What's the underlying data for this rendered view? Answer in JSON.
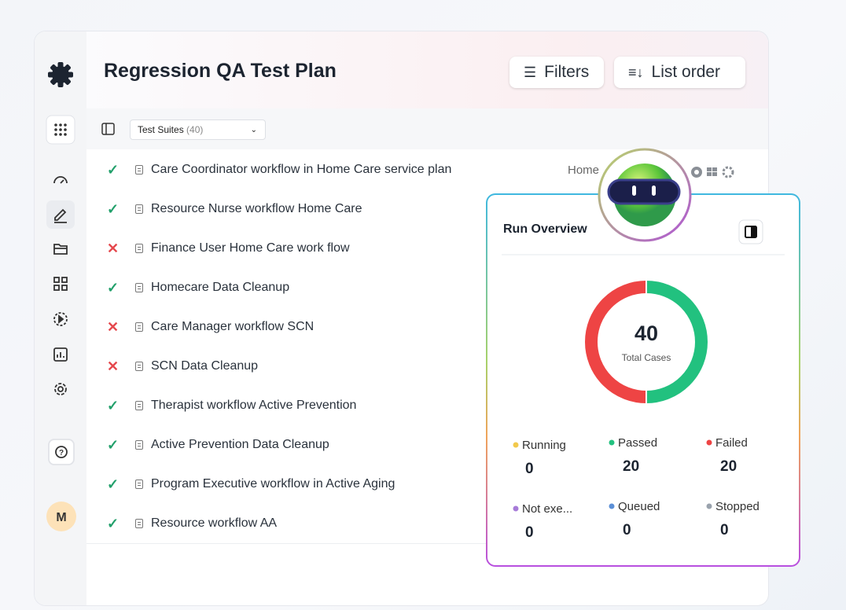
{
  "header": {
    "title": "Regression QA Test Plan",
    "filters": "Filters",
    "list_order": "List order"
  },
  "suites": {
    "label": "Test Suites",
    "count": "(40)"
  },
  "sidebar": {
    "avatar": "M"
  },
  "rows": [
    {
      "status": "pass",
      "name": "Care Coordinator workflow in Home Care service plan",
      "tag": "Home"
    },
    {
      "status": "pass",
      "name": "Resource Nurse workflow Home Care"
    },
    {
      "status": "fail",
      "name": "Finance User Home Care work flow"
    },
    {
      "status": "pass",
      "name": "Homecare Data Cleanup"
    },
    {
      "status": "fail",
      "name": "Care Manager workflow SCN"
    },
    {
      "status": "fail",
      "name": "SCN Data Cleanup"
    },
    {
      "status": "pass",
      "name": "Therapist workflow Active Prevention"
    },
    {
      "status": "pass",
      "name": "Active Prevention Data Cleanup"
    },
    {
      "status": "pass",
      "name": "Program Executive workflow in Active Aging"
    },
    {
      "status": "pass",
      "name": "Resource workflow AA"
    }
  ],
  "overview": {
    "title": "Run Overview",
    "total": 40,
    "total_label": "Total Cases",
    "stats": [
      {
        "name": "Running",
        "value": 0,
        "color": "#f2c94c"
      },
      {
        "name": "Passed",
        "value": 20,
        "color": "#22c17f"
      },
      {
        "name": "Failed",
        "value": 20,
        "color": "#ee4444"
      },
      {
        "name": "Not exe...",
        "value": 0,
        "color": "#a77bd8"
      },
      {
        "name": "Queued",
        "value": 0,
        "color": "#5b8fd6"
      },
      {
        "name": "Stopped",
        "value": 0,
        "color": "#9aa3ad"
      }
    ]
  }
}
